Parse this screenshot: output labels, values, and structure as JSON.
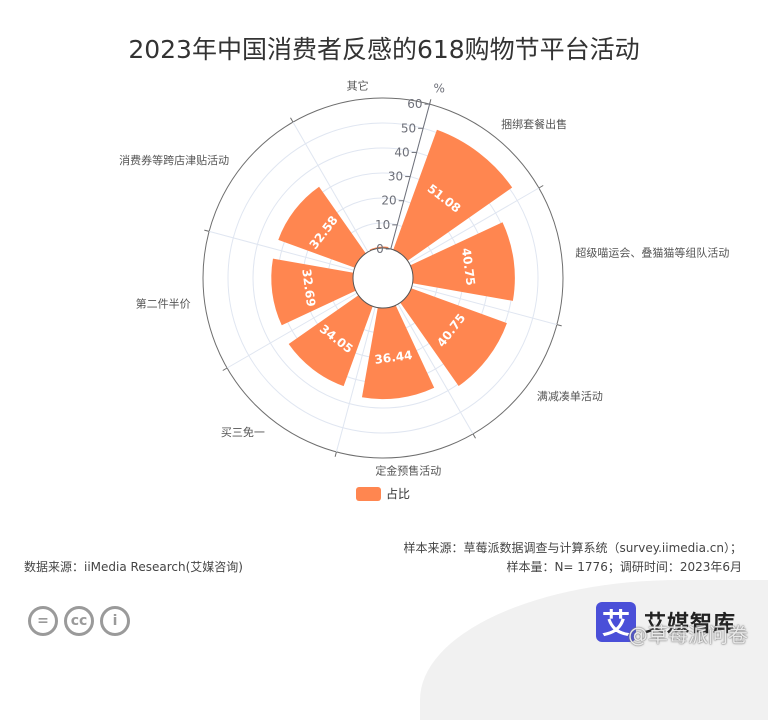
{
  "title": "2023年中国消费者反感的618购物节平台活动",
  "chart_data": {
    "type": "polar-bar",
    "title": "2023年中国消费者反感的618购物节平台活动",
    "categories": [
      "捆绑套餐出售",
      "超级喵运会、叠猫猫等组队活动",
      "满减凑单活动",
      "定金预售活动",
      "买三免一",
      "第二件半价",
      "消费券等跨店津贴活动",
      "其它"
    ],
    "series": [
      {
        "name": "占比",
        "values": [
          51.08,
          40.75,
          40.75,
          36.44,
          34.05,
          32.69,
          32.58,
          0.57
        ]
      }
    ],
    "radial_axis": {
      "unit": "%",
      "min": 0,
      "max": 60,
      "ticks": [
        0,
        10,
        20,
        30,
        40,
        50,
        60
      ]
    },
    "legend_position": "bottom",
    "colors": {
      "bar": "#ff8650",
      "bar_label": "#ffffff",
      "axis": "#6e7079",
      "grid": "#e0e6f1"
    }
  },
  "legend": {
    "label": "占比"
  },
  "footer": {
    "data_source": "数据来源：iiMedia Research(艾媒咨询)",
    "sample_source": "样本来源：草莓派数据调查与计算系统（survey.iimedia.cn）；",
    "sample_size": "样本量：N= 1776；调研时间：2023年6月"
  },
  "license": {
    "icons": [
      "equals-icon",
      "cc-icon",
      "person-icon"
    ],
    "equals": "=",
    "cc": "cc",
    "person": "i"
  },
  "logo": {
    "mark": "艾",
    "name": "艾媒智库"
  },
  "watermark": "@草莓派问卷"
}
